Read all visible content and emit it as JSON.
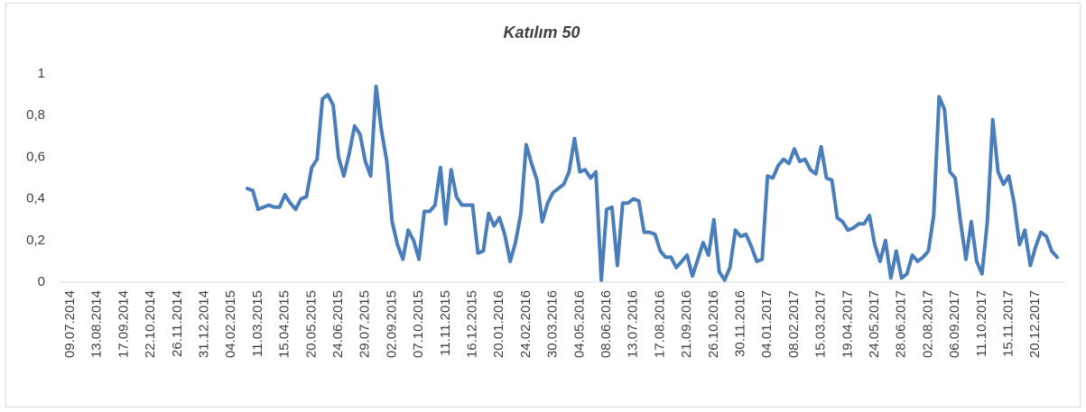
{
  "chart_data": {
    "type": "line",
    "title": "Katılım 50",
    "categories": [
      "09.07.2014",
      null,
      null,
      null,
      null,
      "13.08.2014",
      null,
      null,
      null,
      null,
      "17.09.2014",
      null,
      null,
      null,
      null,
      "22.10.2014",
      null,
      null,
      null,
      null,
      "26.11.2014",
      null,
      null,
      null,
      null,
      "31.12.2014",
      null,
      null,
      null,
      null,
      "04.02.2015",
      null,
      null,
      null,
      null,
      "11.03.2015",
      null,
      null,
      null,
      null,
      "15.04.2015",
      null,
      null,
      null,
      null,
      "20.05.2015",
      null,
      null,
      null,
      null,
      "24.06.2015",
      null,
      null,
      null,
      null,
      "29.07.2015",
      null,
      null,
      null,
      null,
      "02.09.2015",
      null,
      null,
      null,
      null,
      "07.10.2015",
      null,
      null,
      null,
      null,
      "11.11.2015",
      null,
      null,
      null,
      null,
      "16.12.2015",
      null,
      null,
      null,
      null,
      "20.01.2016",
      null,
      null,
      null,
      null,
      "24.02.2016",
      null,
      null,
      null,
      null,
      "30.03.2016",
      null,
      null,
      null,
      null,
      "04.05.2016",
      null,
      null,
      null,
      null,
      "08.06.2016",
      null,
      null,
      null,
      null,
      "13.07.2016",
      null,
      null,
      null,
      null,
      "17.08.2016",
      null,
      null,
      null,
      null,
      "21.09.2016",
      null,
      null,
      null,
      null,
      "26.10.2016",
      null,
      null,
      null,
      null,
      "30.11.2016",
      null,
      null,
      null,
      null,
      "04.01.2017",
      null,
      null,
      null,
      null,
      "08.02.2017",
      null,
      null,
      null,
      null,
      "15.03.2017",
      null,
      null,
      null,
      null,
      "19.04.2017",
      null,
      null,
      null,
      null,
      "24.05.2017",
      null,
      null,
      null,
      null,
      "28.06.2017",
      null,
      null,
      null,
      null,
      "02.08.2017",
      null,
      null,
      null,
      null,
      "06.09.2017",
      null,
      null,
      null,
      null,
      "11.10.2017",
      null,
      null,
      null,
      null,
      "15.11.2017",
      null,
      null,
      null,
      null,
      "20.12.2017",
      null,
      null,
      null,
      null
    ],
    "series": [
      {
        "color": "#4a7ebb",
        "values": [
          null,
          null,
          null,
          null,
          null,
          null,
          null,
          null,
          null,
          null,
          null,
          null,
          null,
          null,
          null,
          null,
          null,
          null,
          null,
          null,
          null,
          null,
          null,
          null,
          null,
          null,
          null,
          null,
          null,
          null,
          null,
          null,
          null,
          0.45,
          0.44,
          0.35,
          0.36,
          0.37,
          0.36,
          0.36,
          0.42,
          0.38,
          0.35,
          0.4,
          0.41,
          0.55,
          0.59,
          0.88,
          0.9,
          0.85,
          0.6,
          0.51,
          0.62,
          0.75,
          0.71,
          0.58,
          0.51,
          0.94,
          0.73,
          0.58,
          0.29,
          0.18,
          0.11,
          0.25,
          0.2,
          0.11,
          0.34,
          0.34,
          0.37,
          0.55,
          0.28,
          0.54,
          0.41,
          0.37,
          0.37,
          0.37,
          0.14,
          0.15,
          0.33,
          0.27,
          0.31,
          0.23,
          0.1,
          0.19,
          0.33,
          0.66,
          0.57,
          0.49,
          0.29,
          0.38,
          0.43,
          0.45,
          0.47,
          0.53,
          0.69,
          0.53,
          0.54,
          0.5,
          0.53,
          0.01,
          0.35,
          0.36,
          0.08,
          0.38,
          0.38,
          0.4,
          0.39,
          0.24,
          0.24,
          0.23,
          0.15,
          0.12,
          0.12,
          0.07,
          0.1,
          0.13,
          0.03,
          0.11,
          0.19,
          0.13,
          0.3,
          0.05,
          0.01,
          0.07,
          0.25,
          0.22,
          0.23,
          0.17,
          0.1,
          0.11,
          0.51,
          0.5,
          0.56,
          0.59,
          0.57,
          0.64,
          0.58,
          0.59,
          0.54,
          0.52,
          0.65,
          0.5,
          0.49,
          0.31,
          0.29,
          0.25,
          0.26,
          0.28,
          0.28,
          0.32,
          0.18,
          0.1,
          0.2,
          0.02,
          0.15,
          0.02,
          0.04,
          0.13,
          0.1,
          0.12,
          0.15,
          0.32,
          0.89,
          0.83,
          0.53,
          0.5,
          0.29,
          0.11,
          0.29,
          0.1,
          0.04,
          0.29,
          0.78,
          0.53,
          0.47,
          0.51,
          0.38,
          0.18,
          0.25,
          0.08,
          0.17,
          0.24,
          0.22,
          0.15,
          0.12
        ]
      }
    ],
    "ylim": [
      0,
      1
    ],
    "yticks": [
      0,
      {
        "value": 0.2,
        "label": "0,2"
      },
      {
        "value": 0.4,
        "label": "0,4"
      },
      {
        "value": 0.6,
        "label": "0,6"
      },
      {
        "value": 0.8,
        "label": "0,8"
      },
      1
    ]
  }
}
